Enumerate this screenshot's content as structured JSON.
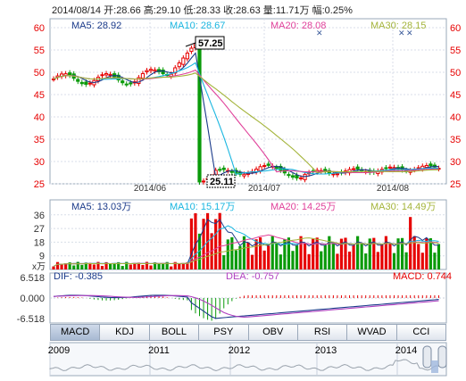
{
  "top_info": {
    "date": "2014/08/14",
    "open_label": "开:",
    "open": "28.66",
    "high_label": "高:",
    "high": "29.10",
    "low_label": "低:",
    "low": "28.33",
    "close_label": "收:",
    "close": "28.63",
    "volume_label": "量:",
    "volume": "11.71万",
    "change_label": "幅:",
    "change": "0.25%"
  },
  "price_panel": {
    "ma5": "MA5: 28.92",
    "ma10": "MA10: 28.67",
    "ma20": "MA20: 28.08",
    "ma30": "MA30: 28.15",
    "y_ticks": [
      "60",
      "55",
      "50",
      "45",
      "40",
      "35",
      "30",
      "25"
    ],
    "y_range": [
      25,
      62
    ],
    "x_labels": [
      "2014/06",
      "2014/07",
      "2014/08"
    ],
    "high_callout": "57.25",
    "low_callout": "25.11",
    "colors": {
      "ma5": "#1a3a8a",
      "ma10": "#19b6e0",
      "ma20": "#e0409a",
      "ma30": "#a4b43a",
      "up": "#e60000",
      "down": "#0a9a0a"
    }
  },
  "volume_panel": {
    "ma5": "MA5: 13.03万",
    "ma10": "MA10: 15.17万",
    "ma20": "MA20: 14.25万",
    "ma30": "MA30: 14.49万",
    "unit": "x万",
    "y_ticks": [
      "36",
      "27",
      "18",
      "9"
    ]
  },
  "macd_panel": {
    "dif": "DIF: -0.385",
    "dea": "DEA: -0.757",
    "macd": "MACD: 0.744",
    "y_ticks": [
      "6.518",
      "0.000",
      "-6.518"
    ]
  },
  "tabs": [
    "MACD",
    "KDJ",
    "BOLL",
    "PSY",
    "OBV",
    "RSI",
    "WVAD",
    "CCI"
  ],
  "active_tab": "MACD",
  "navigator": {
    "years": [
      "2009",
      "2011",
      "2012",
      "2013",
      "2014"
    ]
  }
}
